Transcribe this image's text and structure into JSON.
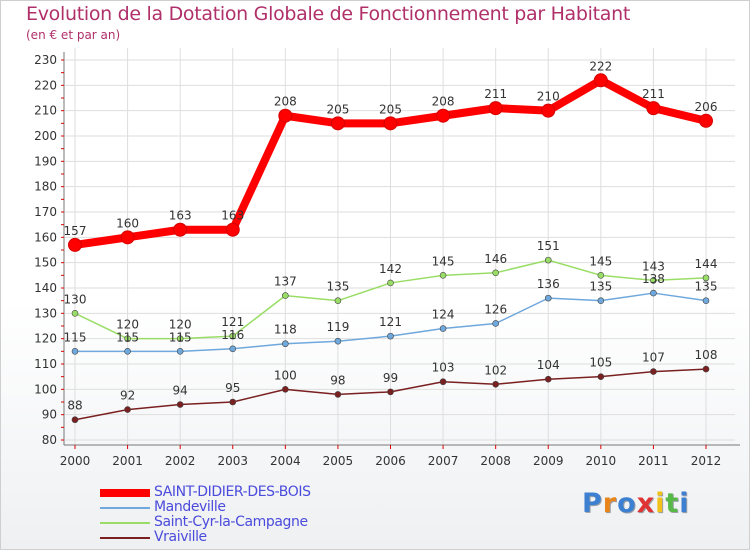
{
  "title": "Evolution de la Dotation Globale de Fonctionnement par Habitant",
  "subtitle": "(en € et par an)",
  "logo": {
    "letters": [
      "P",
      "r",
      "o",
      "x",
      "i",
      "t",
      "i"
    ],
    "colors": [
      "#3d7fd0",
      "#e8841a",
      "#3d7fd0",
      "#e03434",
      "#f2c21b",
      "#58b848",
      "#3d7fd0"
    ]
  },
  "chart_data": {
    "type": "line",
    "title": "Evolution de la Dotation Globale de Fonctionnement par Habitant",
    "subtitle": "(en € et par an)",
    "xlabel": "",
    "ylabel": "",
    "ylim": [
      80,
      230
    ],
    "yticks": [
      80,
      90,
      100,
      110,
      120,
      130,
      140,
      150,
      160,
      170,
      180,
      190,
      200,
      210,
      220,
      230
    ],
    "grid": true,
    "legend_position": "bottom-left",
    "x": [
      "2000",
      "2001",
      "2002",
      "2003",
      "2004",
      "2005",
      "2006",
      "2007",
      "2008",
      "2009",
      "2010",
      "2011",
      "2012"
    ],
    "series": [
      {
        "name": "SAINT-DIDIER-DES-BOIS",
        "color": "#ff0000",
        "text_color": "#4b4bdc",
        "values": [
          157,
          160,
          163,
          163,
          208,
          205,
          205,
          208,
          211,
          210,
          222,
          211,
          206
        ]
      },
      {
        "name": "Mandeville",
        "color": "#6fa8dc",
        "text_color": "#4b4bdc",
        "values": [
          115,
          115,
          115,
          116,
          118,
          119,
          121,
          124,
          126,
          136,
          135,
          138,
          135
        ]
      },
      {
        "name": "Saint-Cyr-la-Campagne",
        "color": "#99dd66",
        "text_color": "#4b4bdc",
        "values": [
          130,
          120,
          120,
          121,
          137,
          135,
          142,
          145,
          146,
          151,
          145,
          143,
          144
        ]
      },
      {
        "name": "Vraiville",
        "color": "#7a2020",
        "text_color": "#4b4bdc",
        "values": [
          88,
          92,
          94,
          95,
          100,
          98,
          99,
          103,
          102,
          104,
          105,
          107,
          108
        ]
      }
    ]
  }
}
